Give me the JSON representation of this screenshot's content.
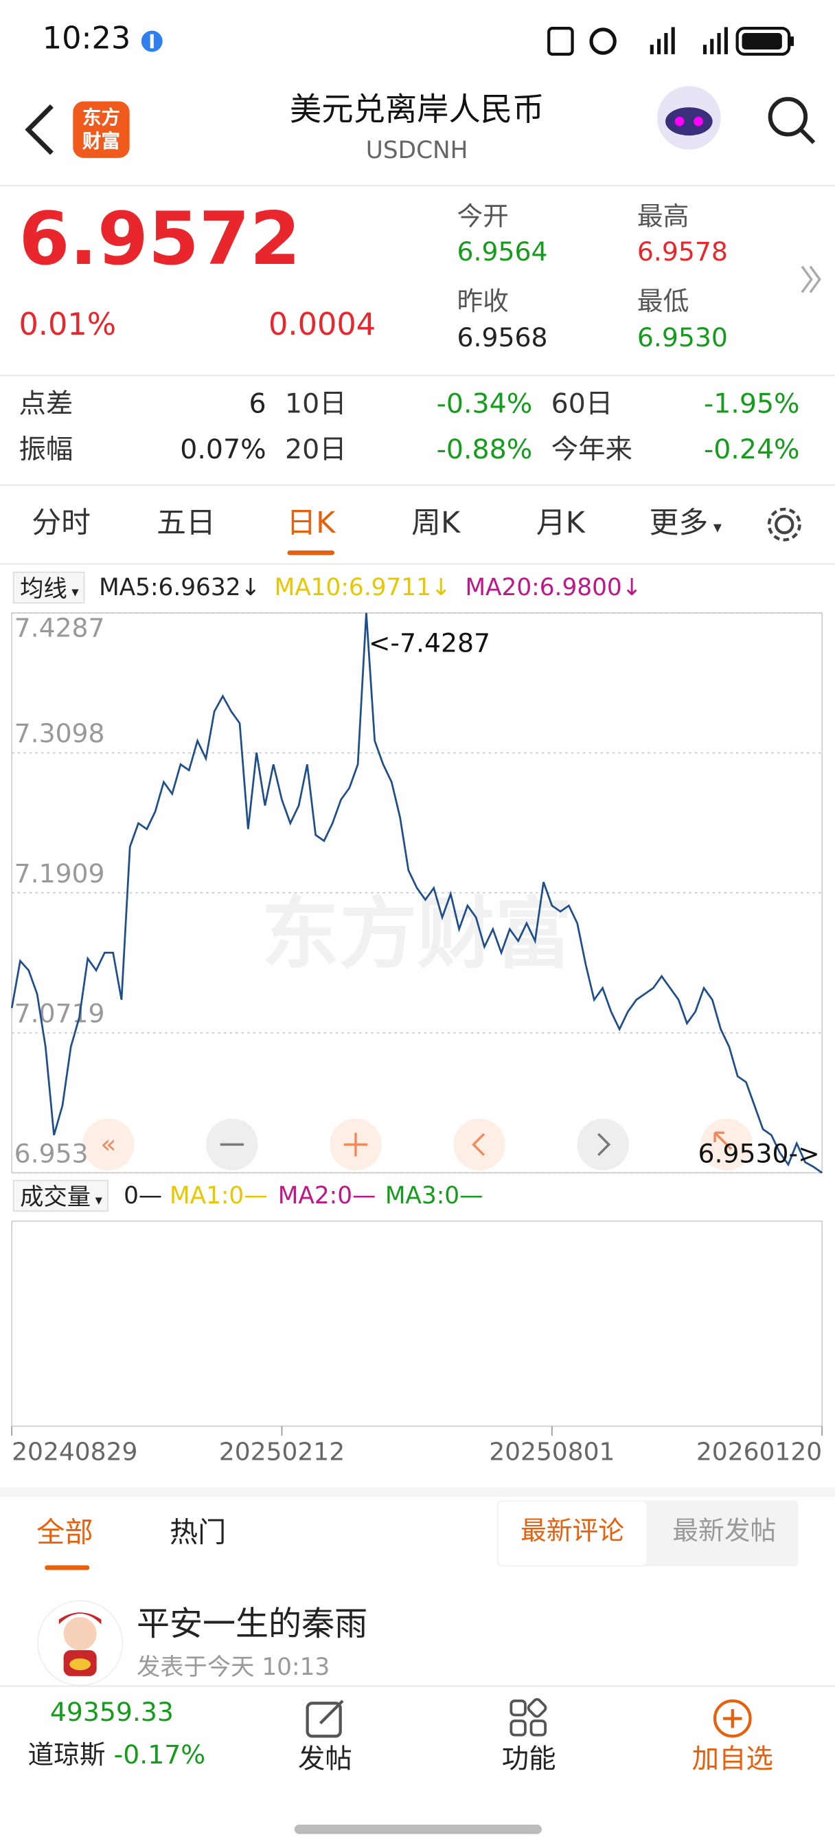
{
  "status_bar": {
    "time": "10:23"
  },
  "header": {
    "logo": [
      "东方",
      "财富"
    ],
    "title": "美元兑离岸人民币",
    "subtitle": "USDCNH"
  },
  "quote": {
    "price": "6.9572",
    "change_pct": "0.01%",
    "change": "0.0004",
    "stats": [
      {
        "label": "今开",
        "value": "6.9564"
      },
      {
        "label": "最高",
        "value": "6.9578"
      },
      {
        "label": "昨收",
        "value": "6.9568"
      },
      {
        "label": "最低",
        "value": "6.9530"
      }
    ]
  },
  "metrics": [
    [
      "点差",
      "6",
      "10日",
      "-0.34%",
      "60日",
      "-1.95%"
    ],
    [
      "振幅",
      "0.07%",
      "20日",
      "-0.88%",
      "今年来",
      "-0.24%"
    ]
  ],
  "tabs": {
    "items": [
      "分时",
      "五日",
      "日K",
      "周K",
      "月K",
      "更多"
    ],
    "active": 2
  },
  "indicators": {
    "selector": "均线",
    "items": [
      "MA5:6.9632↓",
      "MA10:6.9711↓",
      "MA20:6.9800↓"
    ]
  },
  "chart_data": {
    "type": "line",
    "color": "#1f4e8c",
    "watermark": "东方财富",
    "annotations": [
      "<-7.4287",
      "6.9530->"
    ],
    "ylim": [
      6.953,
      7.4287
    ],
    "yticks": [
      7.4287,
      7.3098,
      7.1909,
      7.0719,
      6.953
    ],
    "grid": true,
    "categories": [
      "20240829",
      null,
      null,
      null,
      null,
      null,
      null,
      null,
      null,
      null,
      null,
      null,
      null,
      null,
      null,
      null,
      null,
      null,
      null,
      null,
      null,
      null,
      null,
      null,
      null,
      null,
      null,
      null,
      null,
      null,
      null,
      null,
      "20250212",
      null,
      null,
      null,
      null,
      null,
      null,
      null,
      null,
      null,
      null,
      null,
      null,
      null,
      null,
      null,
      null,
      null,
      null,
      null,
      null,
      null,
      null,
      null,
      null,
      null,
      null,
      null,
      null,
      null,
      null,
      null,
      "20250801",
      null,
      null,
      null,
      null,
      null,
      null,
      null,
      null,
      null,
      null,
      null,
      null,
      null,
      null,
      null,
      null,
      null,
      null,
      null,
      null,
      null,
      null,
      null,
      null,
      null,
      null,
      null,
      null,
      null,
      null,
      null,
      "20260120"
    ],
    "values": [
      7.093,
      7.133,
      7.125,
      7.105,
      7.06,
      6.985,
      7.01,
      7.06,
      7.085,
      7.135,
      7.125,
      7.14,
      7.14,
      7.1,
      7.23,
      7.25,
      7.245,
      7.26,
      7.285,
      7.275,
      7.3,
      7.295,
      7.32,
      7.305,
      7.345,
      7.358,
      7.345,
      7.335,
      7.245,
      7.31,
      7.265,
      7.3,
      7.27,
      7.25,
      7.265,
      7.3,
      7.24,
      7.235,
      7.25,
      7.27,
      7.28,
      7.3,
      7.4287,
      7.32,
      7.3,
      7.285,
      7.255,
      7.21,
      7.195,
      7.185,
      7.195,
      7.17,
      7.19,
      7.16,
      7.18,
      7.17,
      7.145,
      7.16,
      7.14,
      7.16,
      7.15,
      7.165,
      7.15,
      7.2,
      7.18,
      7.175,
      7.18,
      7.165,
      7.13,
      7.1,
      7.11,
      7.09,
      7.075,
      7.09,
      7.1,
      7.105,
      7.11,
      7.12,
      7.11,
      7.1,
      7.08,
      7.09,
      7.11,
      7.1,
      7.075,
      7.06,
      7.035,
      7.03,
      7.01,
      6.99,
      6.985,
      6.97,
      6.96,
      6.978,
      6.962,
      6.958,
      6.953
    ]
  },
  "volume": {
    "selector": "成交量",
    "items": [
      "0—",
      "MA1:0—",
      "MA2:0—",
      "MA3:0—"
    ]
  },
  "comments": {
    "tabs": [
      "全部",
      "热门"
    ],
    "sort": [
      "最新评论",
      "最新发帖"
    ],
    "post": {
      "user": "平安一生的秦雨",
      "time": "发表于今天 10:13"
    }
  },
  "bottom_nav": {
    "index_value": "49359.33",
    "index_name": "道琼斯",
    "index_change": "-0.17%",
    "items": [
      "发帖",
      "功能",
      "加自选"
    ]
  }
}
